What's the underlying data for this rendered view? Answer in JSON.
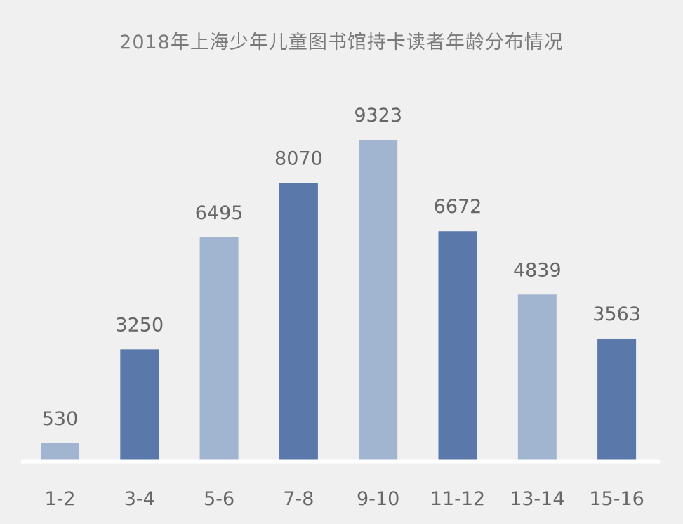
{
  "chart_data": {
    "type": "bar",
    "title": "2018年上海少年儿童图书馆持卡读者年龄分布情况",
    "xlabel": "",
    "ylabel": "",
    "categories": [
      "1-2",
      "3-4",
      "5-6",
      "7-8",
      "9-10",
      "11-12",
      "13-14",
      "15-16"
    ],
    "values": [
      530,
      3250,
      6495,
      8070,
      9323,
      6672,
      4839,
      3563
    ],
    "ylim": [
      0,
      9323
    ],
    "grid": false,
    "colors": {
      "light": "#a1b5d1",
      "dark": "#5a78aa",
      "baseline": "#ffffff",
      "background": "#f0f0f0"
    },
    "bar_color_pattern": [
      "light",
      "dark",
      "light",
      "dark",
      "light",
      "dark",
      "light",
      "dark"
    ]
  }
}
